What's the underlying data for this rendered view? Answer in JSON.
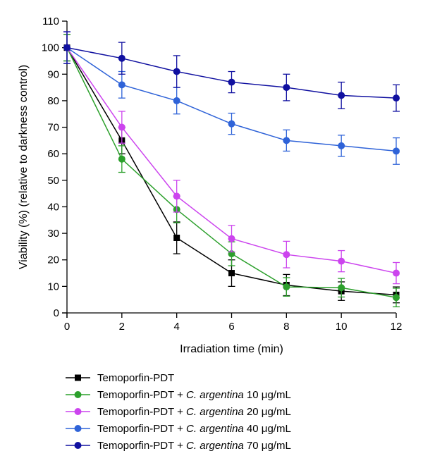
{
  "chart_data": {
    "type": "line",
    "title": "",
    "xlabel": "Irradiation time (min)",
    "ylabel": "Viability (%) (relative to darkness control)",
    "x": [
      0,
      2,
      4,
      6,
      8,
      10,
      12
    ],
    "xlim": [
      0,
      12
    ],
    "ylim": [
      0,
      110
    ],
    "xticks": [
      0,
      2,
      4,
      6,
      8,
      10,
      12
    ],
    "yticks": [
      0,
      10,
      20,
      30,
      40,
      50,
      60,
      70,
      80,
      90,
      100,
      110
    ],
    "grid": false,
    "legend_position": "bottom",
    "error_bars": true,
    "series": [
      {
        "name": "Temoporfin-PDT",
        "legend_parts": [
          "Temoporfin-PDT"
        ],
        "color": "#000000",
        "marker": "square",
        "values": [
          100,
          65,
          28.3,
          15,
          10.5,
          8.2,
          6.8
        ],
        "errors": [
          5,
          5,
          6,
          5,
          4,
          3.5,
          3
        ]
      },
      {
        "name": "Temoporfin-PDT + C. argentina 10 μg/mL",
        "legend_parts": [
          "Temoporfin-PDT + ",
          "C. argentina",
          " 10 ",
          "μ",
          "g/mL"
        ],
        "color": "#2ca02c",
        "marker": "circle",
        "values": [
          100,
          58,
          39,
          22.3,
          9.8,
          9.5,
          5.8
        ],
        "errors": [
          5,
          5,
          5,
          4.5,
          3.5,
          3.5,
          3.5
        ]
      },
      {
        "name": "Temoporfin-PDT + C. argentina 20 μg/mL",
        "legend_parts": [
          "Temoporfin-PDT + ",
          "C. argentina",
          " 20 ",
          "μ",
          "g/mL"
        ],
        "color": "#cc44ee",
        "marker": "circle",
        "values": [
          100,
          70,
          44,
          28,
          22,
          19.5,
          15
        ],
        "errors": [
          6,
          6,
          6,
          5,
          5,
          4,
          4
        ]
      },
      {
        "name": "Temoporfin-PDT + C. argentina 40 μg/mL",
        "legend_parts": [
          "Temoporfin-PDT + ",
          "C. argentina",
          " 40 ",
          "μ",
          "g/mL"
        ],
        "color": "#2f63d8",
        "marker": "circle",
        "values": [
          100,
          86,
          80,
          71.3,
          65,
          63,
          61
        ],
        "errors": [
          6,
          5,
          5,
          4,
          4,
          4,
          5
        ]
      },
      {
        "name": "Temoporfin-PDT + C. argentina 70 μg/mL",
        "legend_parts": [
          "Temoporfin-PDT + ",
          "C. argentina",
          " 70 ",
          "μ",
          "g/mL"
        ],
        "color": "#1010a0",
        "marker": "circle",
        "values": [
          100,
          96,
          91,
          87,
          85,
          82,
          81
        ],
        "errors": [
          6,
          6,
          6,
          4,
          5,
          5,
          5
        ]
      }
    ]
  }
}
